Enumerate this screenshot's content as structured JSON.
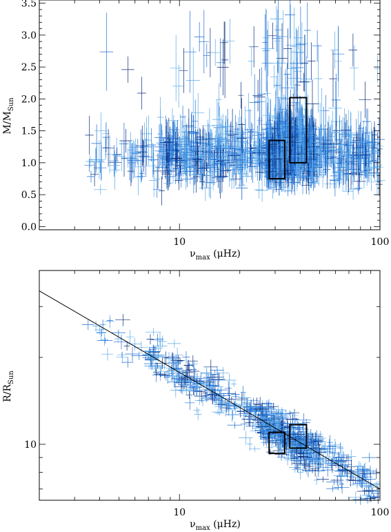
{
  "chart_data": [
    {
      "type": "scatter",
      "title": "",
      "x_scale": "log",
      "y_scale": "linear",
      "xlim": [
        2,
        100
      ],
      "ylim": [
        -0.05,
        3.55
      ],
      "xlabel": {
        "symbol": "ν",
        "subscript": "max",
        "unit": " (μHz)"
      },
      "ylabel": {
        "main": "M/M",
        "subscript": "Sun"
      },
      "x_tick_labels": [
        {
          "value": 10,
          "label": "10"
        },
        {
          "value": 100,
          "label": "100"
        }
      ],
      "y_tick_labels": [
        {
          "value": 0.0,
          "label": "0.0"
        },
        {
          "value": 0.5,
          "label": "0.5"
        },
        {
          "value": 1.0,
          "label": "1.0"
        },
        {
          "value": 1.5,
          "label": "1.5"
        },
        {
          "value": 2.0,
          "label": "2.0"
        },
        {
          "value": 2.5,
          "label": "2.5"
        },
        {
          "value": 3.0,
          "label": "3.0"
        },
        {
          "value": 3.5,
          "label": "3.5"
        }
      ],
      "grid": false,
      "point_style": "error bars",
      "colors": {
        "light": "#5aa8e8",
        "mid": "#1f6ed4",
        "dark": "#0a2a78"
      },
      "series_points_approx": 1500,
      "boxes": [
        {
          "x": [
            28,
            33.5
          ],
          "y": [
            0.75,
            1.35
          ]
        },
        {
          "x": [
            35.5,
            43
          ],
          "y": [
            1.0,
            2.02
          ]
        }
      ]
    },
    {
      "type": "scatter",
      "title": "",
      "x_scale": "log",
      "y_scale": "log",
      "xlim": [
        2,
        100
      ],
      "ylim": [
        6.4,
        40
      ],
      "xlabel": {
        "symbol": "ν",
        "subscript": "max",
        "unit": " (μHz)"
      },
      "ylabel": {
        "main": "R/R",
        "subscript": "Sun"
      },
      "x_tick_labels": [
        {
          "value": 10,
          "label": "10"
        },
        {
          "value": 100,
          "label": "100"
        }
      ],
      "y_tick_labels": [
        {
          "value": 10,
          "label": "10"
        }
      ],
      "grid": false,
      "point_style": "error bars",
      "colors": {
        "light": "#5aa8e8",
        "mid": "#1f6ed4",
        "dark": "#0a2a78"
      },
      "series_points_approx": 900,
      "fit_line": {
        "x": [
          2,
          100
        ],
        "y": [
          34.0,
          7.0
        ]
      },
      "boxes": [
        {
          "x": [
            28,
            33.5
          ],
          "y": [
            9.3,
            11.0
          ]
        },
        {
          "x": [
            35.5,
            43
          ],
          "y": [
            9.7,
            11.7
          ]
        }
      ]
    }
  ]
}
